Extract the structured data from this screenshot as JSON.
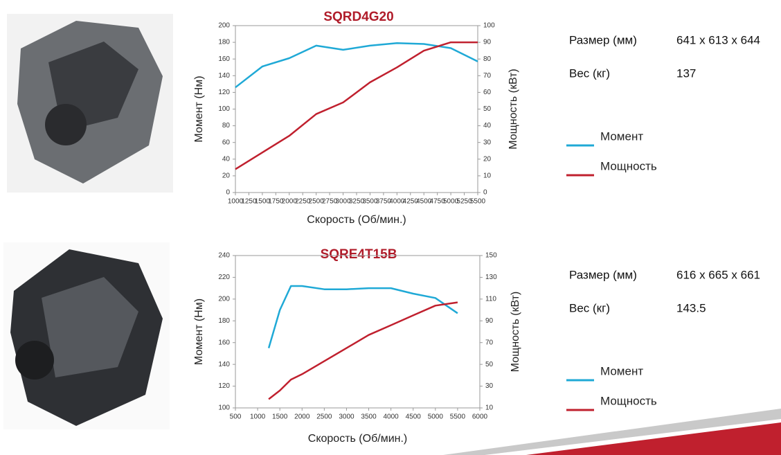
{
  "chart_data": [
    {
      "type": "line",
      "title": "SQRD4G20",
      "x_label": "Скорость (Об/мин.)",
      "y_label": "Момент (Нм)",
      "y2_label": "Мощность (кВт)",
      "x": [
        1000,
        1500,
        2000,
        2500,
        3000,
        3500,
        4000,
        4500,
        5000,
        5500
      ],
      "xlim": [
        1000,
        5500
      ],
      "xticks": [
        1000,
        1250,
        1500,
        1750,
        2000,
        2250,
        2500,
        2750,
        3000,
        3250,
        3500,
        3750,
        4000,
        4250,
        4500,
        4750,
        5000,
        5250,
        5500
      ],
      "ylim": [
        0,
        200
      ],
      "yticks": [
        0,
        20,
        40,
        60,
        80,
        100,
        120,
        140,
        160,
        180,
        200
      ],
      "y2lim": [
        0,
        100
      ],
      "y2ticks": [
        0,
        10,
        20,
        30,
        40,
        50,
        60,
        70,
        80,
        90,
        100
      ],
      "series": [
        {
          "name": "Момент",
          "color": "#1fa9d6",
          "values": [
            126,
            151,
            161,
            176,
            171,
            176,
            179,
            178,
            173,
            157
          ]
        },
        {
          "name": "Мощность",
          "color": "#c0202e",
          "axis": "y2",
          "values": [
            14,
            24,
            34,
            47,
            54,
            66,
            75,
            85,
            90,
            90
          ]
        }
      ]
    },
    {
      "type": "line",
      "title": "SQRE4T15B",
      "x_label": "Скорость (Об/мин.)",
      "y_label": "Момент (Нм)",
      "y2_label": "Мощность (кВт)",
      "x": [
        1250,
        1500,
        1750,
        2000,
        2500,
        3000,
        3500,
        4000,
        4500,
        5000,
        5500
      ],
      "xlim": [
        500,
        6000
      ],
      "xticks": [
        500,
        1000,
        1500,
        2000,
        2500,
        3000,
        3500,
        4000,
        4500,
        5000,
        5500,
        6000
      ],
      "ylim": [
        100,
        240
      ],
      "yticks": [
        100,
        120,
        140,
        160,
        180,
        200,
        220,
        240
      ],
      "y2lim": [
        10,
        150
      ],
      "y2ticks": [
        10,
        30,
        50,
        70,
        90,
        110,
        130,
        150
      ],
      "series": [
        {
          "name": "Момент",
          "color": "#1fa9d6",
          "values": [
            155,
            190,
            212,
            212,
            209,
            209,
            210,
            210,
            205,
            201,
            187
          ]
        },
        {
          "name": "Мощность",
          "color": "#c0202e",
          "axis": "y2",
          "values": [
            18,
            26,
            36,
            41,
            53,
            65,
            77,
            86,
            95,
            104,
            107
          ]
        }
      ]
    }
  ],
  "specs": [
    {
      "rows": [
        [
          "Размер (мм)",
          "641 x 613 x 644"
        ],
        [
          "Вес (кг)",
          "137"
        ]
      ]
    },
    {
      "rows": [
        [
          "Размер (мм)",
          "616 x 665 x 661"
        ],
        [
          "Вес (кг)",
          "143.5"
        ]
      ]
    }
  ]
}
